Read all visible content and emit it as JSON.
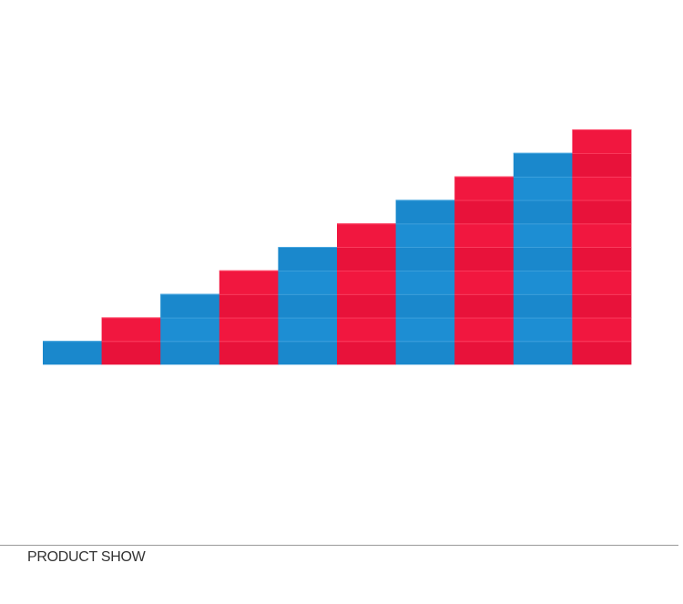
{
  "section": {
    "title": "PRODUCT SHOW"
  }
}
